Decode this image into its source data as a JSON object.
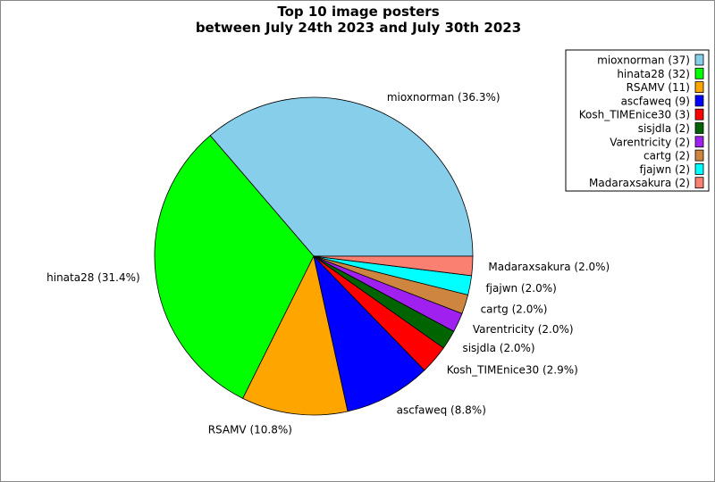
{
  "chart_data": {
    "type": "pie",
    "title": [
      "Top 10 image posters",
      "between July 24th 2023 and July 30th 2023"
    ],
    "start_angle_deg": 0,
    "direction": "counterclockwise",
    "legend_placement": "top-right",
    "slices": [
      {
        "name": "mioxnorman",
        "value": 37,
        "percent_label": "36.3%",
        "legend": "mioxnorman (37)",
        "color": "#87ceeb"
      },
      {
        "name": "hinata28",
        "value": 32,
        "percent_label": "31.4%",
        "legend": "hinata28 (32)",
        "color": "#00ff00"
      },
      {
        "name": "RSAMV",
        "value": 11,
        "percent_label": "10.8%",
        "legend": "RSAMV (11)",
        "color": "#ffa500"
      },
      {
        "name": "ascfaweq",
        "value": 9,
        "percent_label": "8.8%",
        "legend": "ascfaweq (9)",
        "color": "#0000ff"
      },
      {
        "name": "Kosh_TIMEnice30",
        "value": 3,
        "percent_label": "2.9%",
        "legend": "Kosh_TIMEnice30 (3)",
        "color": "#ff0000"
      },
      {
        "name": "sisjdla",
        "value": 2,
        "percent_label": "2.0%",
        "legend": "sisjdla (2)",
        "color": "#006400"
      },
      {
        "name": "Varentricity",
        "value": 2,
        "percent_label": "2.0%",
        "legend": "Varentricity (2)",
        "color": "#a020f0"
      },
      {
        "name": "cartg",
        "value": 2,
        "percent_label": "2.0%",
        "legend": "cartg (2)",
        "color": "#cd853f"
      },
      {
        "name": "fjajwn",
        "value": 2,
        "percent_label": "2.0%",
        "legend": "fjajwn (2)",
        "color": "#00ffff"
      },
      {
        "name": "Madaraxsakura",
        "value": 2,
        "percent_label": "2.0%",
        "legend": "Madaraxsakura (2)",
        "color": "#fa8072"
      }
    ]
  }
}
